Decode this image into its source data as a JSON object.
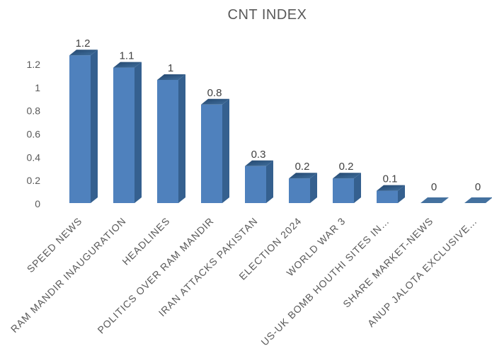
{
  "chart_data": {
    "type": "bar",
    "style": "3d-column",
    "title": "CNT INDEX",
    "categories": [
      "SPEED NEWS",
      "RAM MANDIR INAUGURATION",
      "HEADLINES",
      "POLITICS OVER RAM MANDIR",
      "IRAN ATTACKS PAKISTAN",
      "ELECTION 2024",
      "WORLD WAR 3",
      "US-UK BOMB HOUTHI SITES IN…",
      "SHARE MARKET-NEWS",
      "ANUP JALOTA EXCLUSIVE…"
    ],
    "values": [
      1.2,
      1.1,
      1,
      0.8,
      0.3,
      0.2,
      0.2,
      0.1,
      0,
      0
    ],
    "data_labels": [
      "1.2",
      "1.1",
      "1",
      "0.8",
      "0.3",
      "0.2",
      "0.2",
      "0.1",
      "0",
      "0"
    ],
    "y_ticks": [
      0,
      0.2,
      0.4,
      0.6,
      0.8,
      1,
      1.2
    ],
    "y_tick_labels": [
      "0",
      "0.2",
      "0.4",
      "0.6",
      "0.8",
      "1",
      "1.2"
    ],
    "ylim": [
      0,
      1.2
    ],
    "xlabel": "",
    "ylabel": "",
    "legend": "none",
    "grid": "off",
    "colors": {
      "bar_front": "#4f81bd",
      "bar_side": "#35608f",
      "bar_top_dark": "#23466d",
      "bar_top_light": "#41709f",
      "bar_base_flat": "#44719f",
      "title_text": "#595959",
      "axis_text": "#595959",
      "data_label_text": "#404040"
    }
  }
}
